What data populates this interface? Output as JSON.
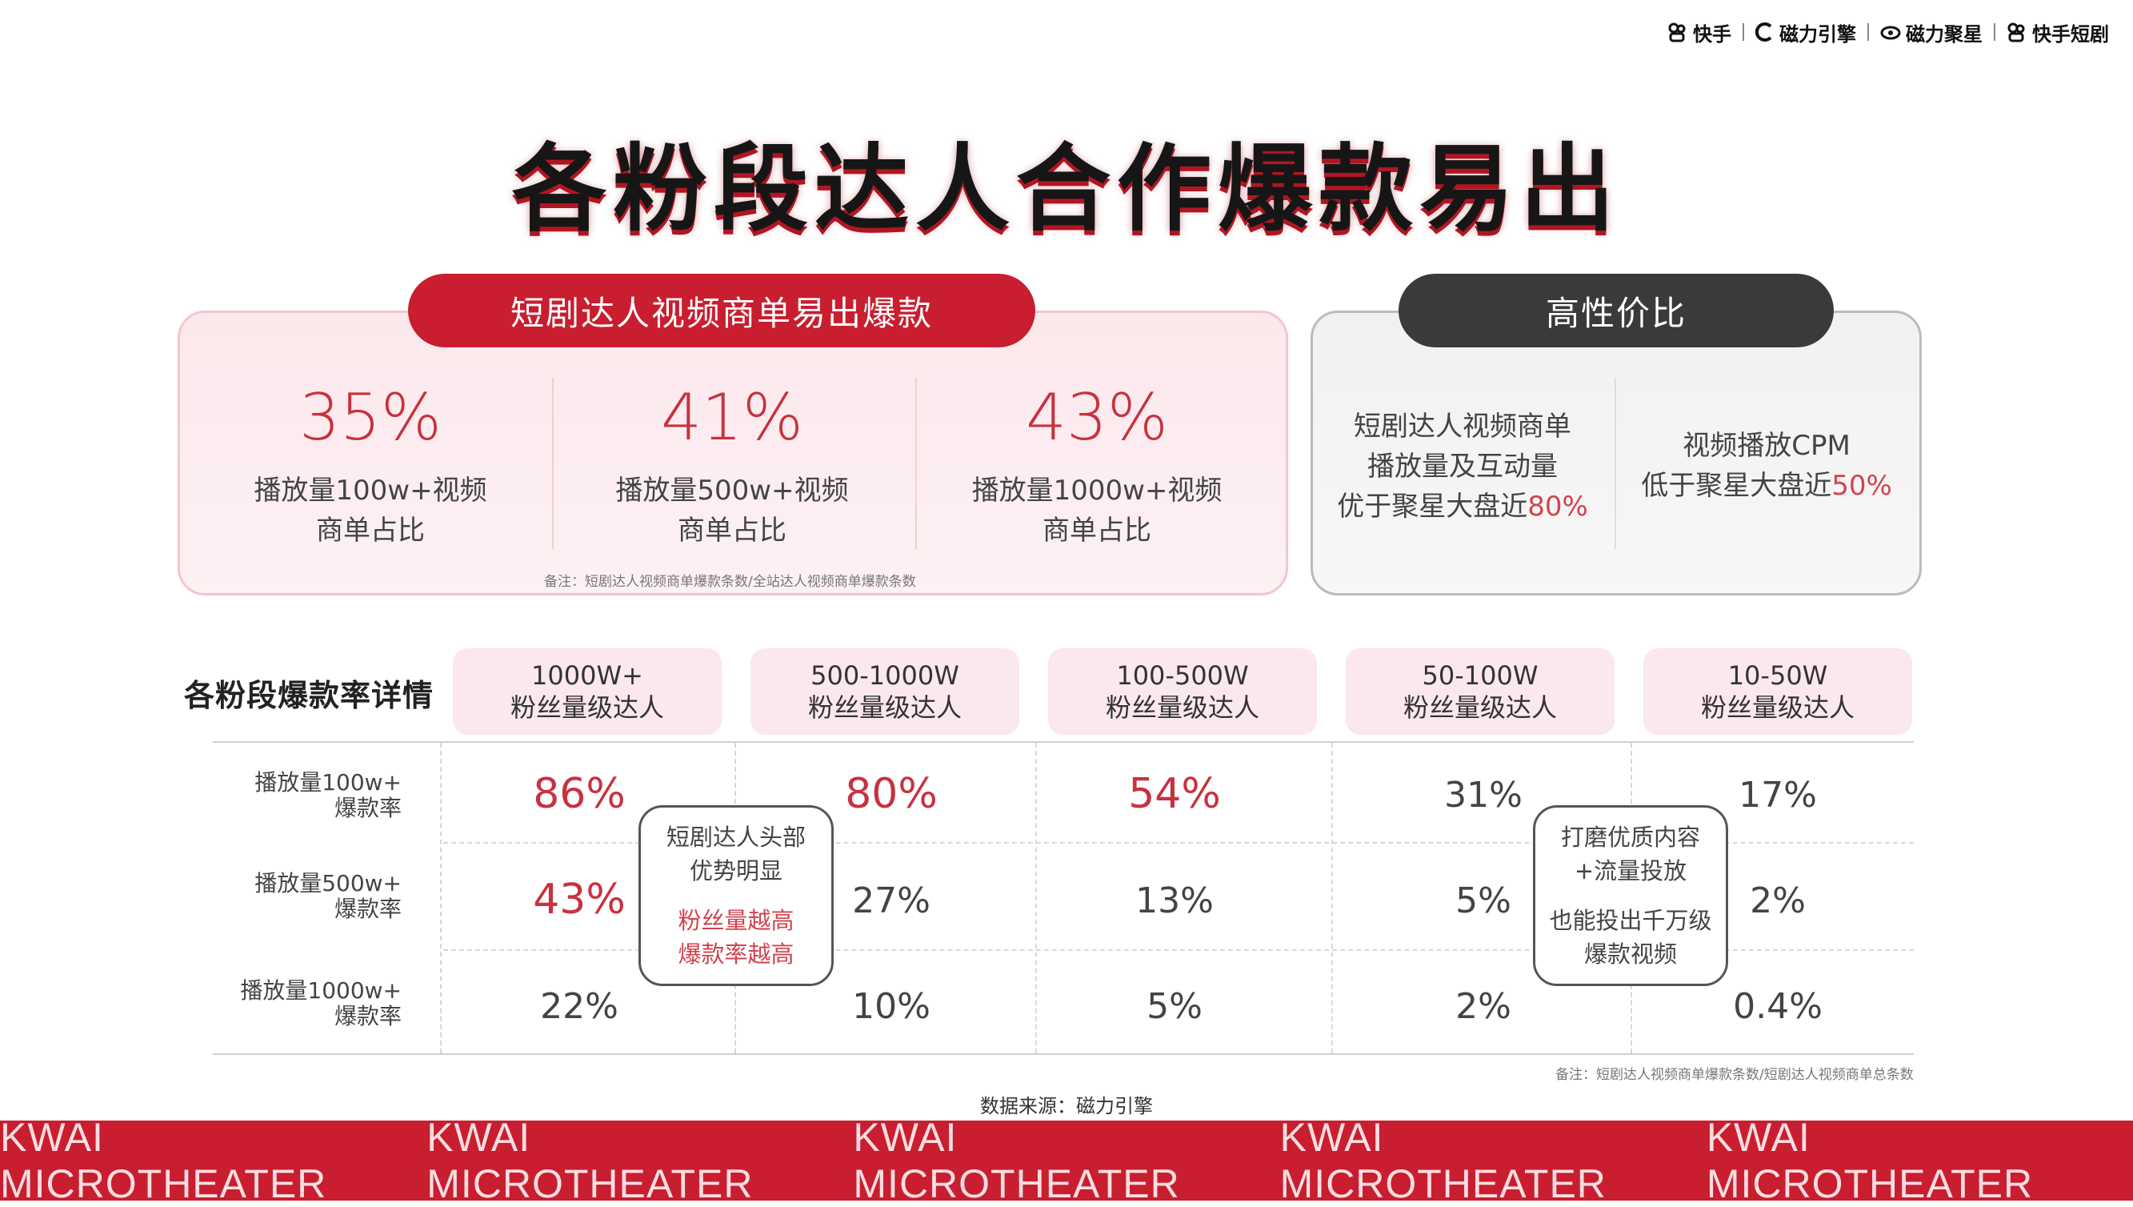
{
  "brands": [
    "快手",
    "磁力引擎",
    "磁力聚星",
    "快手短剧"
  ],
  "title": "各粉段达人合作爆款易出",
  "left_panel": {
    "heading": "短剧达人视频商单易出爆款",
    "stats": [
      {
        "pct": "35%",
        "line1": "播放量100w+视频",
        "line2": "商单占比"
      },
      {
        "pct": "41%",
        "line1": "播放量500w+视频",
        "line2": "商单占比"
      },
      {
        "pct": "43%",
        "line1": "播放量1000w+视频",
        "line2": "商单占比"
      }
    ],
    "note": "备注：短剧达人视频商单爆款条数/全站达人视频商单爆款条数"
  },
  "right_panel": {
    "heading": "高性价比",
    "item1": {
      "line1": "短剧达人视频商单",
      "line2": "播放量及互动量",
      "line3": "优于聚星大盘近",
      "highlight": "80%"
    },
    "item2": {
      "line1": "视频播放CPM",
      "line2": "低于聚星大盘近",
      "highlight": "50%"
    }
  },
  "table": {
    "label": "各粉段爆款率详情",
    "columns": [
      {
        "line1": "1000W+",
        "line2": "粉丝量级达人"
      },
      {
        "line1": "500-1000W",
        "line2": "粉丝量级达人"
      },
      {
        "line1": "100-500W",
        "line2": "粉丝量级达人"
      },
      {
        "line1": "50-100W",
        "line2": "粉丝量级达人"
      },
      {
        "line1": "10-50W",
        "line2": "粉丝量级达人"
      }
    ],
    "rows": [
      {
        "label1": "播放量100w+",
        "label2": "爆款率",
        "values": [
          "86%",
          "80%",
          "54%",
          "31%",
          "17%"
        ]
      },
      {
        "label1": "播放量500w+",
        "label2": "爆款率",
        "values": [
          "43%",
          "27%",
          "13%",
          "5%",
          "2%"
        ]
      },
      {
        "label1": "播放量1000w+",
        "label2": "爆款率",
        "values": [
          "22%",
          "10%",
          "5%",
          "2%",
          "0.4%"
        ]
      }
    ],
    "note": "备注：短剧达人视频商单爆款条数/短剧达人视频商单总条数"
  },
  "bubble_left": {
    "line1": "短剧达人头部",
    "line2": "优势明显",
    "line3": "粉丝量越高",
    "line4": "爆款率越高"
  },
  "bubble_right": {
    "line1": "打磨优质内容",
    "line2": "+流量投放",
    "line3": "也能投出千万级",
    "line4": "爆款视频"
  },
  "source": "数据来源：磁力引擎",
  "footer_band": [
    "KWAI MICROTHEATER",
    "KWAI MICROTHEATER",
    "KWAI MICROTHEATER",
    "KWAI MICROTHEATER",
    "KWAI MICROTHEATER"
  ],
  "colors": {
    "accent": "#c81e30",
    "dark": "#3a3a3a",
    "highlight_text": "#c8313f",
    "panel_pink": "#fbe8ec"
  }
}
